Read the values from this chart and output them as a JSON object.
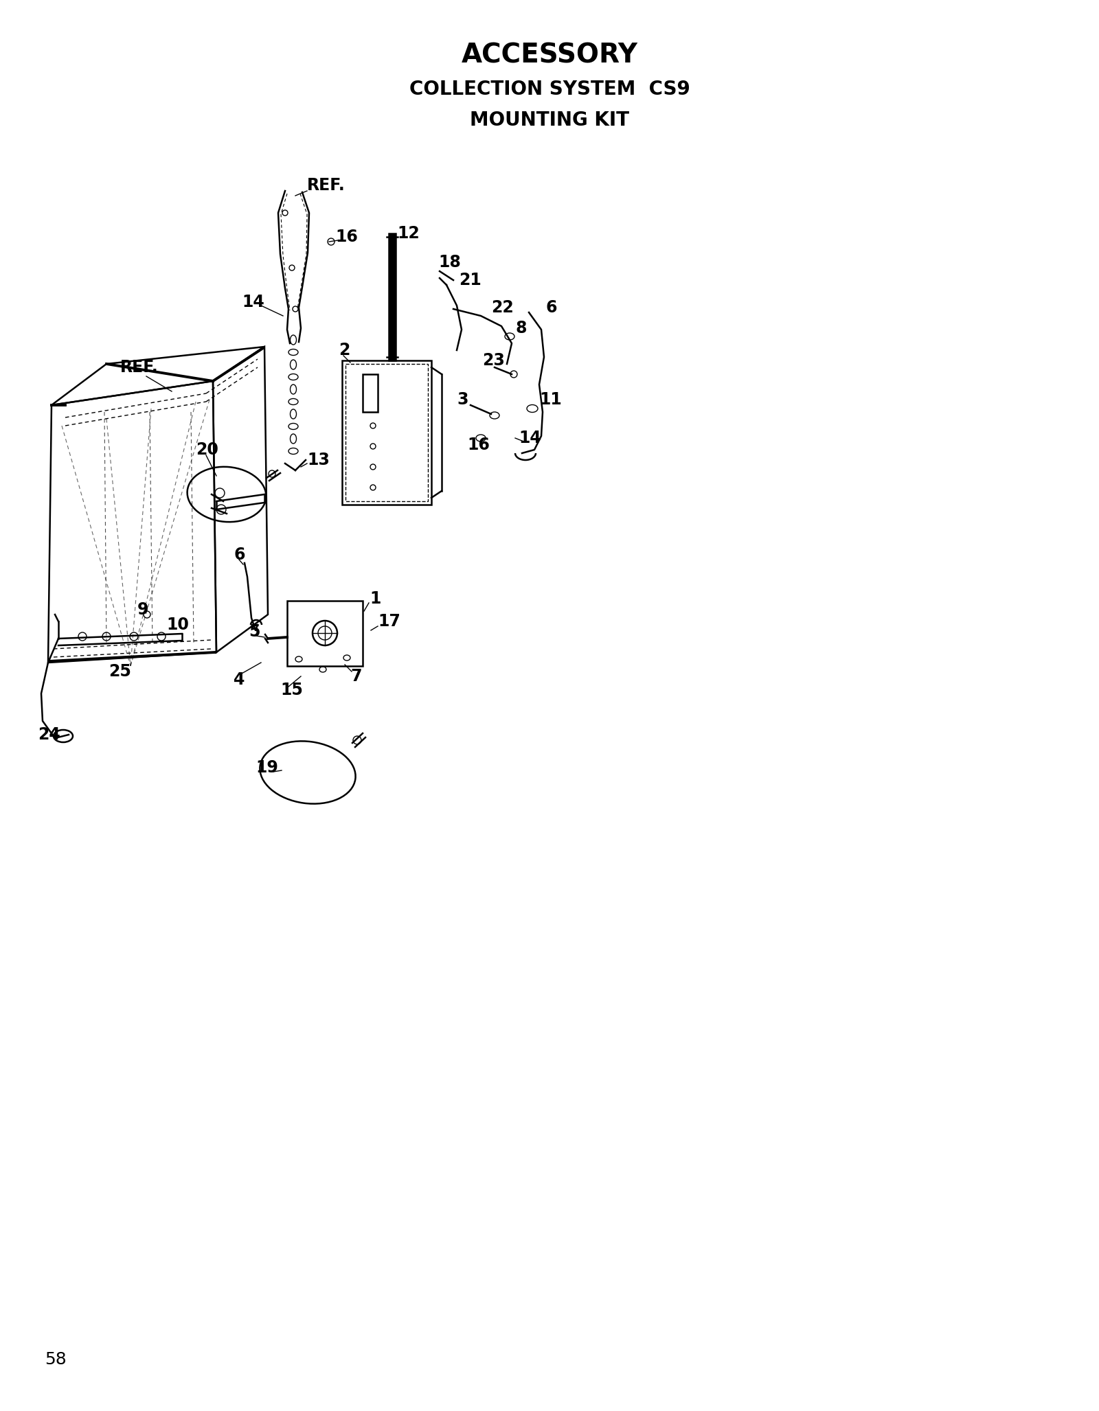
{
  "title_line1": "ACCESSORY",
  "title_line2": "COLLECTION SYSTEM  CS9",
  "title_line3": "MOUNTING KIT",
  "page_number": "58",
  "bg_color": "#ffffff",
  "line_color": "#000000",
  "title_fontsize": 28,
  "subtitle_fontsize": 20,
  "label_fontsize": 17,
  "page_num_fontsize": 18
}
